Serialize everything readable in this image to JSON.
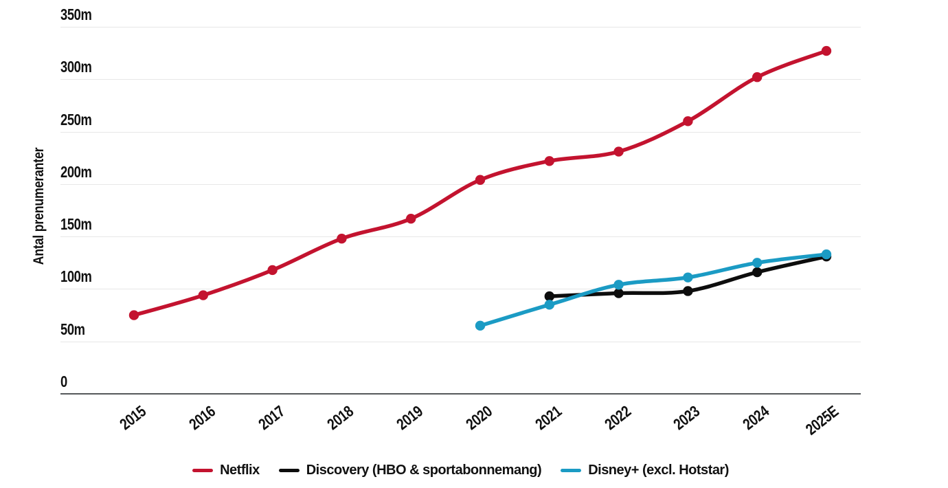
{
  "chart_data": {
    "type": "line",
    "title": "",
    "ylabel": "Antal prenumeranter",
    "xlabel": "",
    "categories": [
      "2015",
      "2016",
      "2017",
      "2018",
      "2019",
      "2020",
      "2021",
      "2022",
      "2023",
      "2024",
      "2025E"
    ],
    "y_axis": {
      "unit": "m",
      "min": 0,
      "max": 350,
      "ticks": [
        {
          "value": 350,
          "label": "350m"
        },
        {
          "value": 300,
          "label": "300m"
        },
        {
          "value": 250,
          "label": "250m"
        },
        {
          "value": 200,
          "label": "200m"
        },
        {
          "value": 150,
          "label": "150m"
        },
        {
          "value": 100,
          "label": "100m"
        },
        {
          "value": 50,
          "label": "50m"
        },
        {
          "value": 0,
          "label": "0"
        }
      ]
    },
    "grid": true,
    "legend_position": "bottom",
    "series": [
      {
        "name": "Netflix",
        "color": "#c3132f",
        "values": [
          75,
          94,
          118,
          148,
          167,
          204,
          222,
          231,
          260,
          302,
          327
        ]
      },
      {
        "name": "Discovery (HBO & sportabonnemang)",
        "color": "#0d0d0d",
        "values": [
          null,
          null,
          null,
          null,
          null,
          null,
          93,
          96,
          98,
          116,
          131
        ]
      },
      {
        "name": "Disney+ (excl. Hotstar)",
        "color": "#1b9bc4",
        "values": [
          null,
          null,
          null,
          null,
          null,
          65,
          85,
          104,
          111,
          125,
          133
        ]
      }
    ]
  },
  "style": {
    "background": "#ffffff",
    "grid_color": "#e7e7e7",
    "axis_color": "#55585a",
    "text_color": "#111111"
  }
}
